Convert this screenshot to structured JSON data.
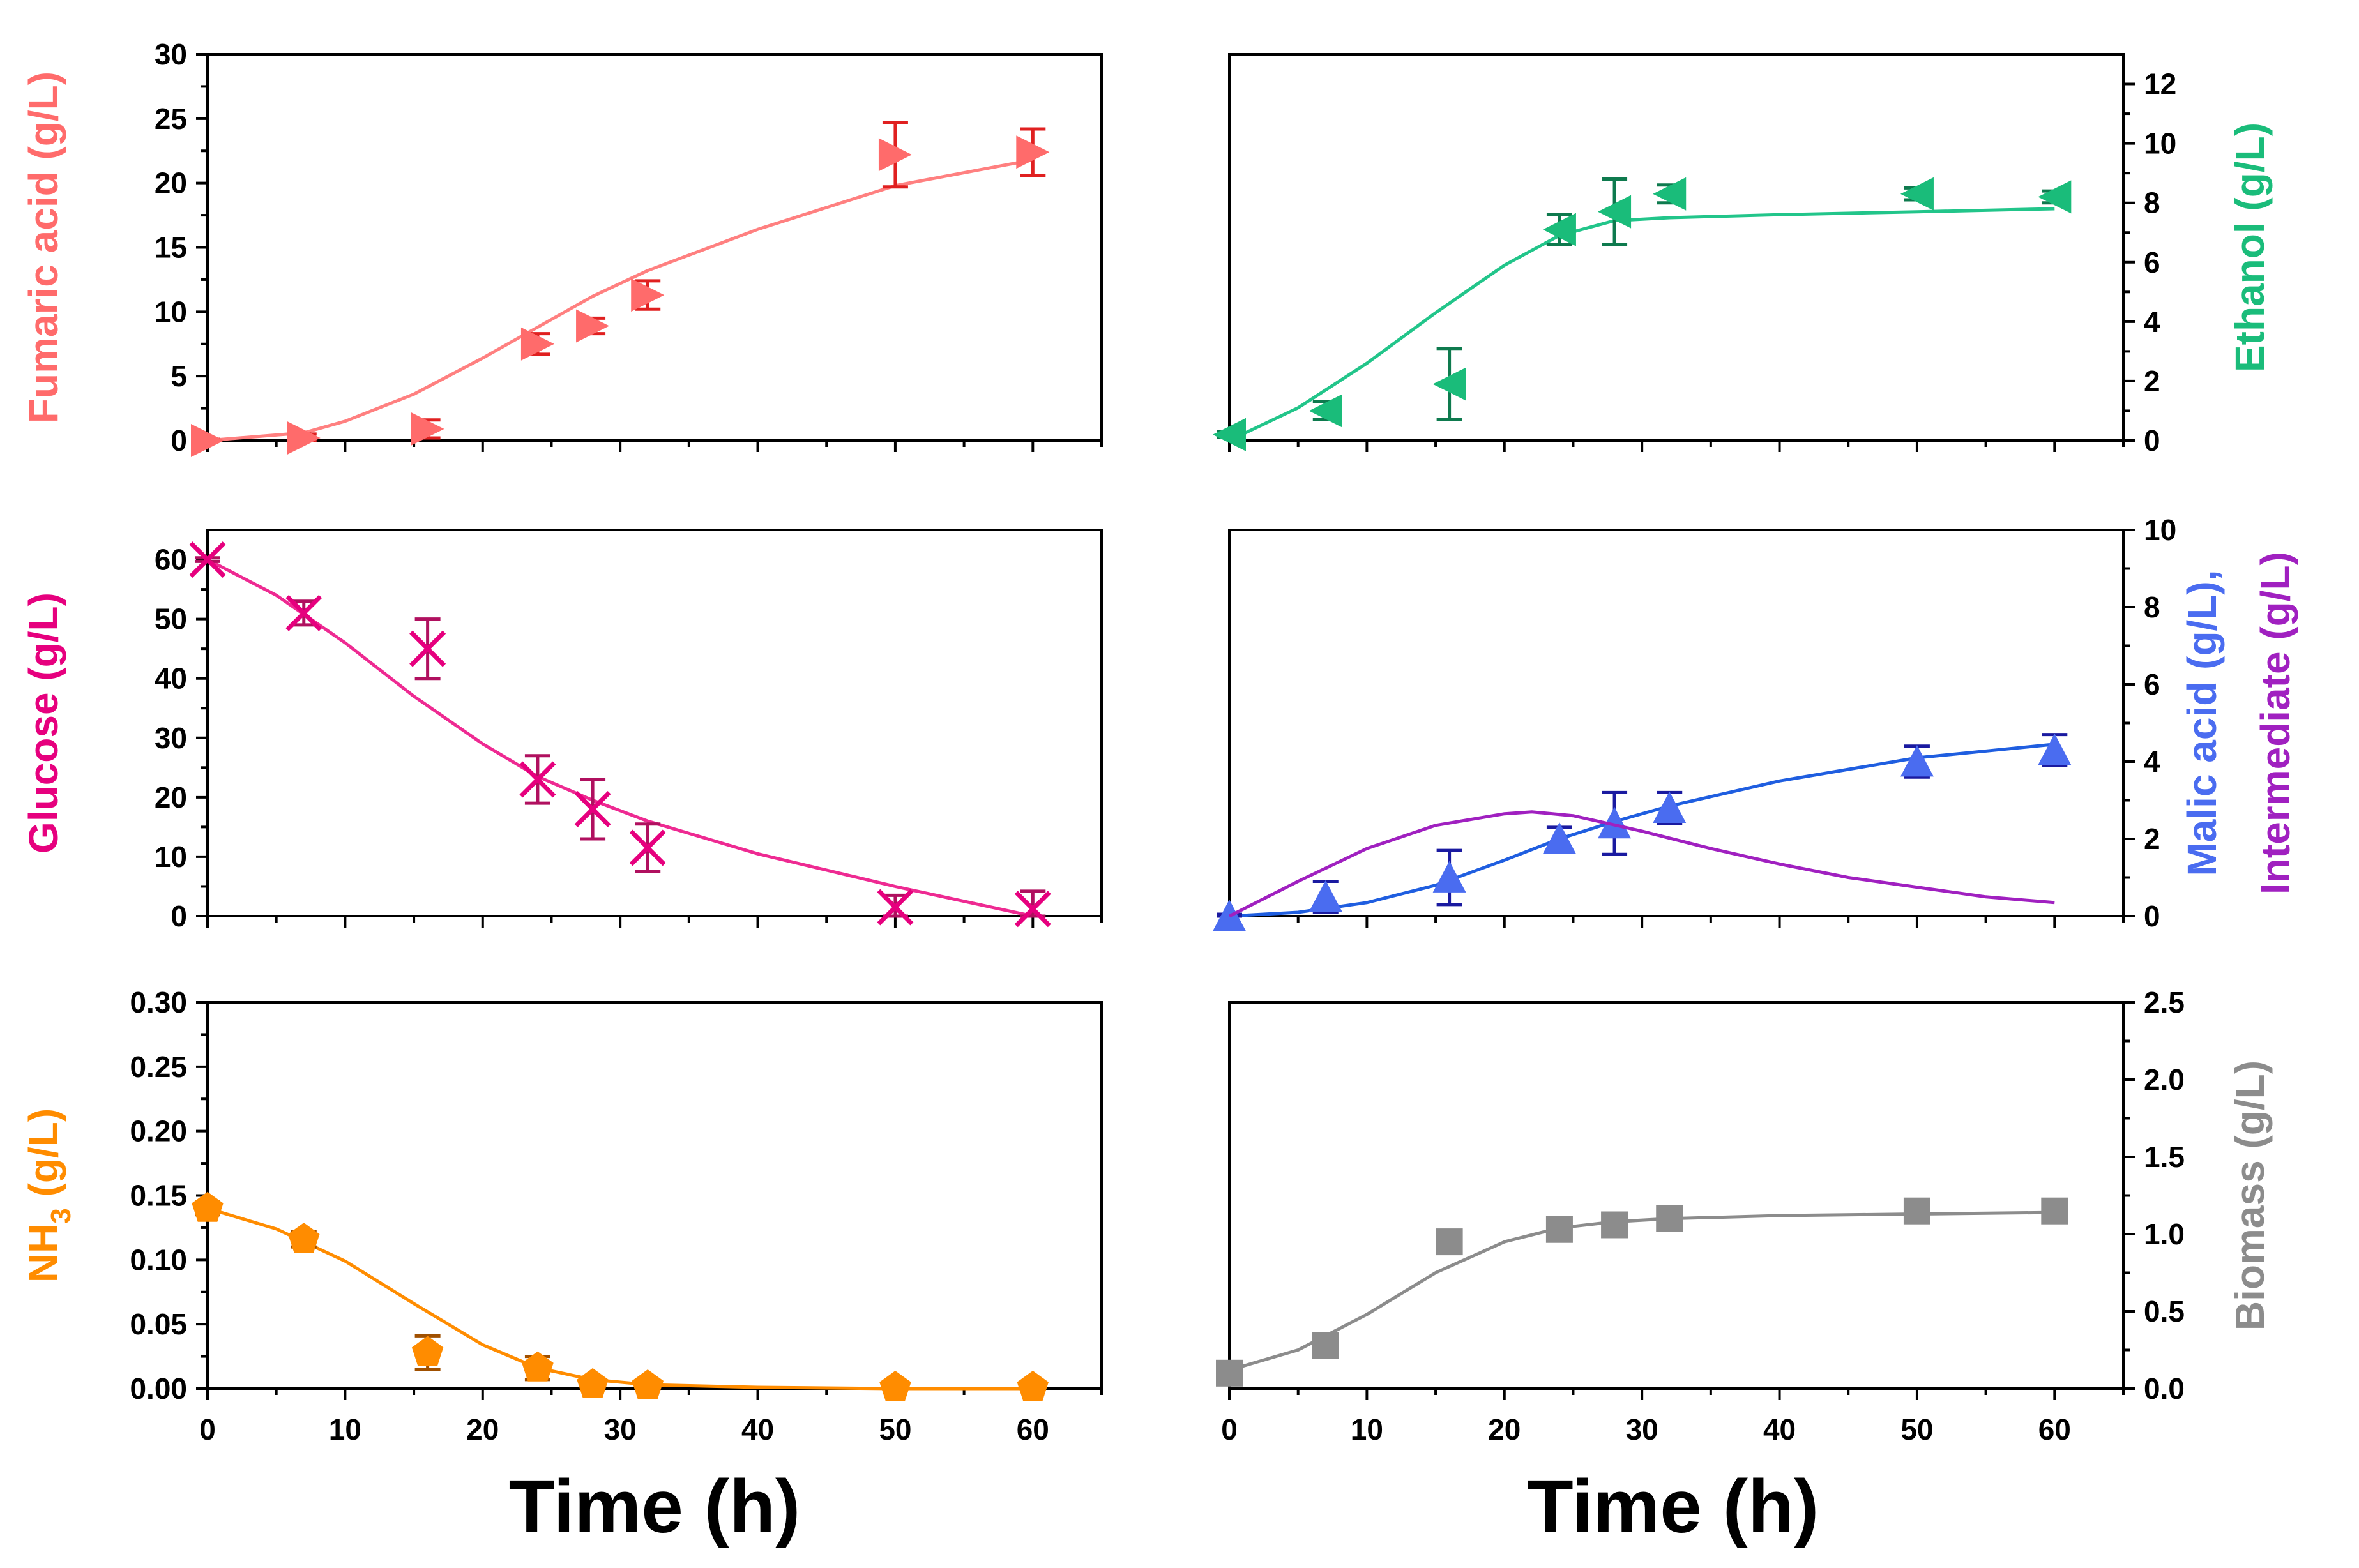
{
  "figure": {
    "xlabel": "Time (h)"
  },
  "chart_data": [
    {
      "id": "fumaric",
      "type": "scatter",
      "y_side": "left",
      "ylabel": "Fumaric acid (g/L)",
      "xlim": [
        0,
        65
      ],
      "ylim": [
        0,
        30
      ],
      "yticks": [
        "0",
        "5",
        "10",
        "15",
        "20",
        "25",
        "30"
      ],
      "xticks": [],
      "series": [
        {
          "name": "Fumaric acid",
          "color": "#ff6b6b",
          "error_color": "#e02020",
          "fit_color": "#ff8080",
          "marker": "triangle-right",
          "x": [
            0,
            7,
            16,
            24,
            28,
            32,
            50,
            60
          ],
          "y": [
            0,
            0.2,
            0.9,
            7.5,
            8.9,
            11.3,
            22.2,
            22.4
          ],
          "err": [
            0.1,
            0.3,
            0.7,
            0.8,
            0.6,
            1.1,
            2.5,
            1.8
          ],
          "fit_x": [
            0,
            7,
            10,
            15,
            20,
            24,
            28,
            32,
            40,
            50,
            60
          ],
          "fit_y": [
            0,
            0.6,
            1.5,
            3.6,
            6.4,
            8.8,
            11.2,
            13.2,
            16.4,
            19.8,
            21.8
          ]
        }
      ]
    },
    {
      "id": "ethanol",
      "type": "scatter",
      "y_side": "right",
      "ylabel": "Ethanol (g/L)",
      "xlim": [
        0,
        65
      ],
      "ylim": [
        0,
        13
      ],
      "yticks": [
        "0",
        "2",
        "4",
        "6",
        "8",
        "10",
        "12"
      ],
      "xticks": [],
      "series": [
        {
          "name": "Ethanol",
          "color": "#1abc7a",
          "error_color": "#0e7a4e",
          "fit_color": "#22c58a",
          "marker": "triangle-left",
          "x": [
            0,
            7,
            16,
            24,
            28,
            32,
            50,
            60
          ],
          "y": [
            0.2,
            1.0,
            1.9,
            7.1,
            7.7,
            8.3,
            8.3,
            8.2
          ],
          "err": [
            0.1,
            0.3,
            1.2,
            0.5,
            1.1,
            0.3,
            0.2,
            0.2
          ],
          "fit_x": [
            0,
            5,
            10,
            15,
            20,
            24,
            28,
            32,
            40,
            50,
            60
          ],
          "fit_y": [
            0,
            1.1,
            2.6,
            4.3,
            5.9,
            6.9,
            7.4,
            7.5,
            7.6,
            7.7,
            7.8
          ]
        }
      ]
    },
    {
      "id": "glucose",
      "type": "scatter",
      "y_side": "left",
      "ylabel": "Glucose (g/L)",
      "xlim": [
        0,
        65
      ],
      "ylim": [
        0,
        65
      ],
      "yticks": [
        "0",
        "10",
        "20",
        "30",
        "40",
        "50",
        "60"
      ],
      "xticks": [],
      "series": [
        {
          "name": "Glucose",
          "color": "#e6007e",
          "error_color": "#b0105f",
          "fit_color": "#ee2a92",
          "marker": "x",
          "x": [
            0,
            7,
            16,
            24,
            28,
            32,
            50,
            60
          ],
          "y": [
            60,
            51,
            45,
            23,
            18,
            11.5,
            1.5,
            1.2
          ],
          "err": [
            0.3,
            2,
            5,
            4,
            5,
            4,
            2,
            3
          ],
          "fit_x": [
            0,
            5,
            10,
            15,
            20,
            24,
            28,
            32,
            40,
            50,
            60
          ],
          "fit_y": [
            60,
            54,
            46,
            37,
            29,
            23.5,
            19.5,
            16,
            10.5,
            5,
            0
          ]
        }
      ]
    },
    {
      "id": "malic",
      "type": "scatter",
      "y_side": "right",
      "ylabel": "Malic acid (g/L),",
      "ylabel2": "Intermediate (g/L)",
      "xlim": [
        0,
        65
      ],
      "ylim": [
        0,
        10
      ],
      "yticks": [
        "0",
        "2",
        "4",
        "6",
        "8",
        "10"
      ],
      "xticks": [],
      "series": [
        {
          "name": "Malic acid",
          "color": "#4a6cf0",
          "error_color": "#1a1aa0",
          "fit_color": "#1f5ee0",
          "marker": "triangle-up",
          "x": [
            0,
            7,
            16,
            24,
            28,
            32,
            50,
            60
          ],
          "y": [
            0,
            0.5,
            1.0,
            2.0,
            2.4,
            2.8,
            4.0,
            4.3
          ],
          "err": [
            0.05,
            0.4,
            0.7,
            0.3,
            0.8,
            0.4,
            0.4,
            0.4
          ],
          "fit_x": [
            0,
            5,
            10,
            15,
            20,
            24,
            28,
            32,
            40,
            50,
            60
          ],
          "fit_y": [
            0,
            0.1,
            0.35,
            0.8,
            1.45,
            2.0,
            2.45,
            2.85,
            3.5,
            4.1,
            4.45
          ]
        },
        {
          "name": "Intermediate",
          "color": "#a020c0",
          "fit_color": "#a020c0",
          "marker": "none",
          "x": [],
          "y": [],
          "err": [],
          "fit_x": [
            0,
            5,
            10,
            15,
            20,
            22,
            25,
            30,
            35,
            40,
            45,
            50,
            55,
            60
          ],
          "fit_y": [
            0,
            0.9,
            1.75,
            2.35,
            2.65,
            2.7,
            2.6,
            2.2,
            1.75,
            1.35,
            1.0,
            0.75,
            0.5,
            0.35
          ]
        }
      ]
    },
    {
      "id": "nh3",
      "type": "scatter",
      "y_side": "left",
      "ylabel": "NH",
      "ylabel_sub": "3",
      "ylabel_tail": " (g/L)",
      "xlim": [
        0,
        65
      ],
      "ylim": [
        0,
        0.3
      ],
      "yticks": [
        "0.00",
        "0.05",
        "0.10",
        "0.15",
        "0.20",
        "0.25",
        "0.30"
      ],
      "xticks": [
        "0",
        "10",
        "20",
        "30",
        "40",
        "50",
        "60"
      ],
      "series": [
        {
          "name": "NH3",
          "color": "#ff8c00",
          "error_color": "#a05000",
          "fit_color": "#ff8c00",
          "marker": "pentagon",
          "x": [
            0,
            7,
            16,
            24,
            28,
            32,
            50,
            60
          ],
          "y": [
            0.14,
            0.116,
            0.028,
            0.016,
            0.003,
            0.002,
            0.001,
            0.001
          ],
          "err": [
            0.005,
            0.006,
            0.013,
            0.009,
            0.003,
            0.002,
            0.001,
            0.001
          ],
          "fit_x": [
            0,
            5,
            10,
            15,
            20,
            24,
            28,
            32,
            40,
            50,
            60
          ],
          "fit_y": [
            0.14,
            0.124,
            0.099,
            0.066,
            0.034,
            0.016,
            0.007,
            0.003,
            0.001,
            0.0,
            0.0
          ]
        }
      ]
    },
    {
      "id": "biomass",
      "type": "scatter",
      "y_side": "right",
      "ylabel": "Biomass (g/L)",
      "xlim": [
        0,
        65
      ],
      "ylim": [
        0,
        2.5
      ],
      "yticks": [
        "0.0",
        "0.5",
        "1.0",
        "1.5",
        "2.0",
        "2.5"
      ],
      "xticks": [
        "0",
        "10",
        "20",
        "30",
        "40",
        "50",
        "60"
      ],
      "series": [
        {
          "name": "Biomass",
          "color": "#8c8c8c",
          "error_color": "#555555",
          "fit_color": "#8c8c8c",
          "marker": "square",
          "x": [
            0,
            7,
            16,
            24,
            28,
            32,
            50,
            60
          ],
          "y": [
            0.1,
            0.28,
            0.95,
            1.03,
            1.06,
            1.1,
            1.15,
            1.15
          ],
          "err": [
            0.01,
            0.02,
            0.02,
            0.02,
            0.02,
            0.02,
            0.02,
            0.02
          ],
          "fit_x": [
            0,
            5,
            10,
            15,
            20,
            24,
            28,
            32,
            40,
            50,
            60
          ],
          "fit_y": [
            0.12,
            0.25,
            0.48,
            0.75,
            0.95,
            1.04,
            1.08,
            1.1,
            1.12,
            1.13,
            1.14
          ]
        }
      ]
    }
  ]
}
